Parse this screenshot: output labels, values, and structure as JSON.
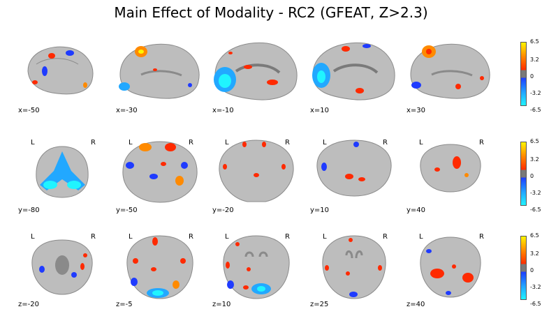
{
  "title": "Main Effect of Modality - RC2 (GFEAT, Z>2.3)",
  "rows": [
    {
      "orientation": "sagittal",
      "slices": [
        {
          "coord": "x=-50",
          "left": "",
          "right": ""
        },
        {
          "coord": "x=-30",
          "left": "",
          "right": ""
        },
        {
          "coord": "x=-10",
          "left": "",
          "right": ""
        },
        {
          "coord": "x=10",
          "left": "",
          "right": ""
        },
        {
          "coord": "x=30",
          "left": "",
          "right": ""
        }
      ],
      "colorbar": [
        "6.5",
        "3.2",
        "0",
        "-3.2",
        "-6.5"
      ]
    },
    {
      "orientation": "coronal",
      "slices": [
        {
          "coord": "y=-80",
          "left": "L",
          "right": "R"
        },
        {
          "coord": "y=-50",
          "left": "L",
          "right": "R"
        },
        {
          "coord": "y=-20",
          "left": "L",
          "right": "R"
        },
        {
          "coord": "y=10",
          "left": "L",
          "right": "R"
        },
        {
          "coord": "y=40",
          "left": "L",
          "right": "R"
        }
      ],
      "colorbar": [
        "6.5",
        "3.2",
        "0",
        "-3.2",
        "-6.5"
      ]
    },
    {
      "orientation": "axial",
      "slices": [
        {
          "coord": "z=-20",
          "left": "L",
          "right": "R"
        },
        {
          "coord": "z=-5",
          "left": "L",
          "right": "R"
        },
        {
          "coord": "z=10",
          "left": "L",
          "right": "R"
        },
        {
          "coord": "z=25",
          "left": "L",
          "right": "R"
        },
        {
          "coord": "z=40",
          "left": "L",
          "right": "R"
        }
      ],
      "colorbar": [
        "6.5",
        "3.2",
        "0",
        "-3.2",
        "-6.5"
      ]
    }
  ],
  "colors": {
    "positive_high": "#fff600",
    "positive_mid": "#ff8a00",
    "positive_low": "#ff2a00",
    "negative_low": "#1f3bff",
    "negative_mid": "#22a8ff",
    "negative_high": "#20f4ff",
    "brain_gray": "#bdbdbd",
    "brain_dark": "#8a8a8a"
  }
}
